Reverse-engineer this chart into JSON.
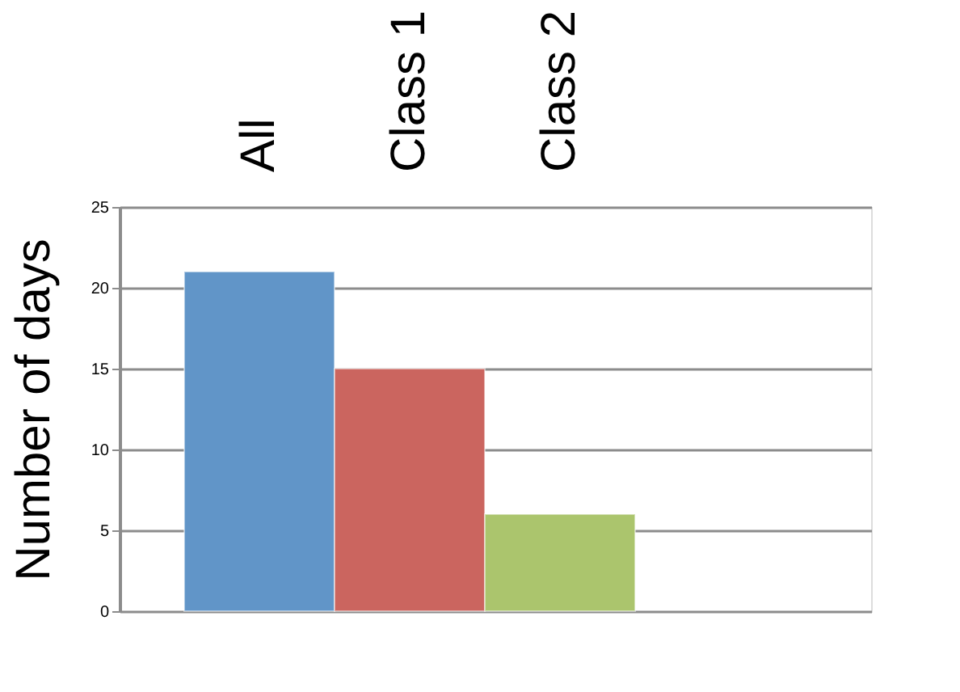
{
  "chart_data": {
    "type": "bar",
    "categories": [
      "All",
      "Class 1",
      "Class 2"
    ],
    "values": [
      21,
      15,
      6
    ],
    "colors": [
      "#6195c8",
      "#cb655f",
      "#abc56d"
    ],
    "ylabel": "Number of days",
    "ylim": [
      0,
      25
    ],
    "yticks": [
      0,
      5,
      10,
      15,
      20,
      25
    ],
    "grid": "y"
  }
}
